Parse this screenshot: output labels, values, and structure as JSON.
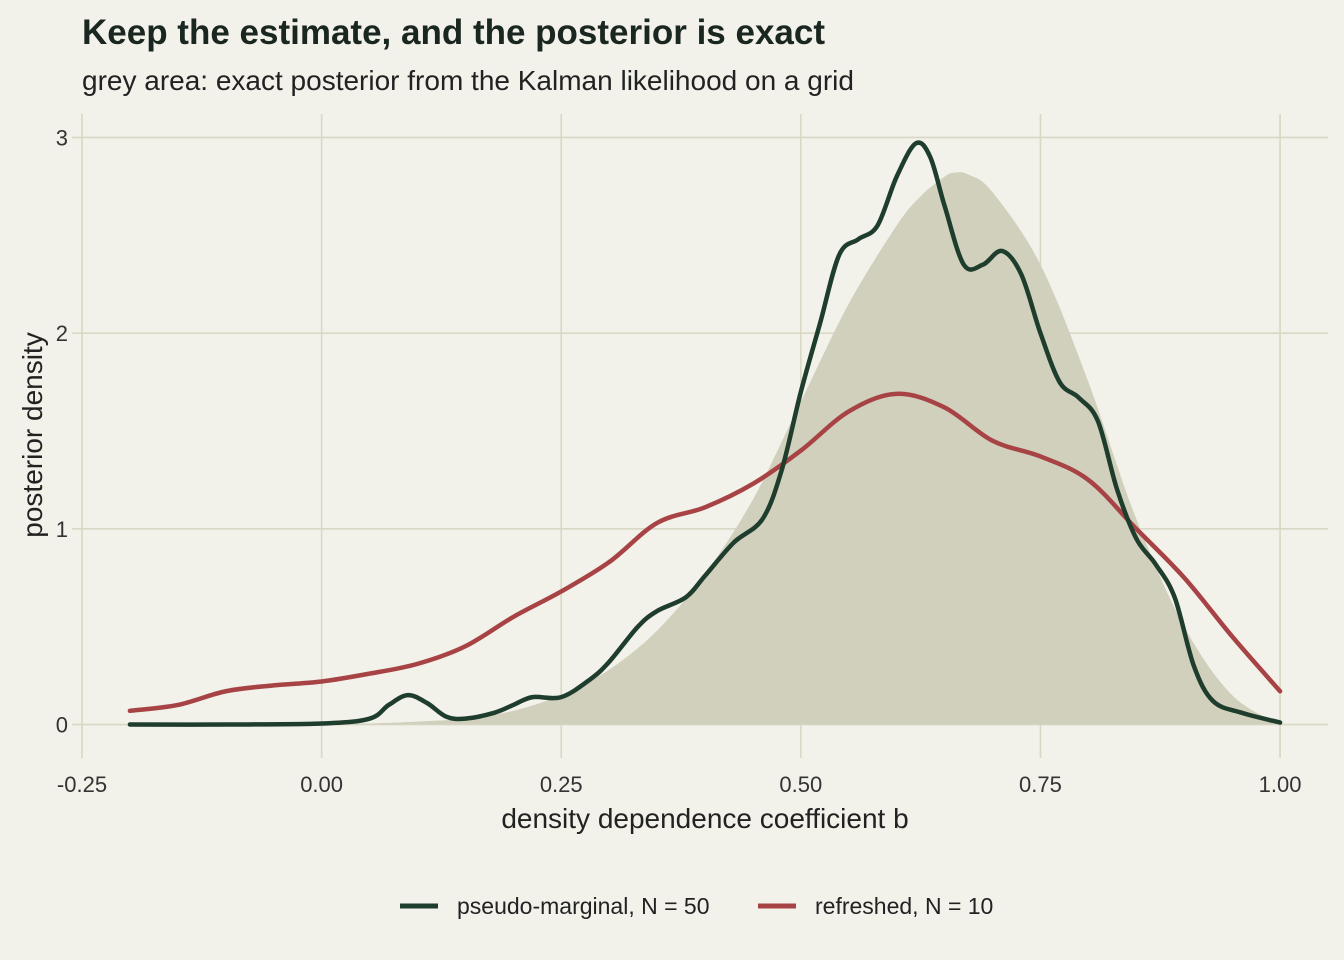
{
  "chart_data": {
    "type": "line",
    "title": "Keep the estimate, and the posterior is exact",
    "subtitle": "grey area: exact posterior from the Kalman likelihood on a grid",
    "xlabel": "density dependence coefficient b",
    "ylabel": "posterior density",
    "xlim": [
      -0.25,
      1.05
    ],
    "ylim": [
      -0.12,
      3.12
    ],
    "x_ticks": [
      -0.25,
      0.0,
      0.25,
      0.5,
      0.75,
      1.0
    ],
    "x_tick_labels": [
      "-0.25",
      "0.00",
      "0.25",
      "0.50",
      "0.75",
      "1.00"
    ],
    "y_ticks": [
      0,
      1,
      2,
      3
    ],
    "y_tick_labels": [
      "0",
      "1",
      "2",
      "3"
    ],
    "grid": true,
    "legend_position": "bottom",
    "area": {
      "color": "#d1d0bd",
      "x": [
        0.0,
        0.05,
        0.1,
        0.15,
        0.2,
        0.25,
        0.3,
        0.35,
        0.4,
        0.45,
        0.5,
        0.55,
        0.6,
        0.625,
        0.65,
        0.66,
        0.675,
        0.7,
        0.75,
        0.8,
        0.85,
        0.9,
        0.95,
        1.0
      ],
      "y": [
        0.0,
        0.005,
        0.015,
        0.03,
        0.07,
        0.15,
        0.28,
        0.48,
        0.77,
        1.15,
        1.65,
        2.15,
        2.55,
        2.7,
        2.8,
        2.82,
        2.81,
        2.72,
        2.35,
        1.75,
        1.05,
        0.5,
        0.15,
        0.0
      ]
    },
    "series": [
      {
        "name": "pseudo-marginal, N = 50",
        "color": "#1f3d2c",
        "x": [
          -0.2,
          -0.1,
          0.0,
          0.05,
          0.07,
          0.09,
          0.11,
          0.13,
          0.15,
          0.18,
          0.2,
          0.22,
          0.25,
          0.28,
          0.3,
          0.33,
          0.35,
          0.38,
          0.4,
          0.43,
          0.46,
          0.48,
          0.5,
          0.52,
          0.54,
          0.56,
          0.58,
          0.6,
          0.62,
          0.635,
          0.65,
          0.67,
          0.69,
          0.71,
          0.73,
          0.75,
          0.77,
          0.79,
          0.81,
          0.83,
          0.85,
          0.87,
          0.89,
          0.91,
          0.93,
          0.96,
          1.0
        ],
        "y": [
          0.0,
          0.0,
          0.005,
          0.03,
          0.1,
          0.15,
          0.11,
          0.04,
          0.03,
          0.06,
          0.1,
          0.14,
          0.14,
          0.23,
          0.32,
          0.5,
          0.58,
          0.65,
          0.76,
          0.93,
          1.05,
          1.3,
          1.7,
          2.05,
          2.4,
          2.48,
          2.55,
          2.8,
          2.97,
          2.9,
          2.65,
          2.35,
          2.35,
          2.42,
          2.3,
          2.0,
          1.75,
          1.67,
          1.55,
          1.2,
          0.95,
          0.82,
          0.65,
          0.3,
          0.12,
          0.06,
          0.01
        ]
      },
      {
        "name": "refreshed, N = 10",
        "color": "#a84345",
        "x": [
          -0.2,
          -0.15,
          -0.1,
          -0.05,
          0.0,
          0.05,
          0.1,
          0.15,
          0.2,
          0.25,
          0.3,
          0.35,
          0.4,
          0.45,
          0.5,
          0.55,
          0.6,
          0.65,
          0.7,
          0.75,
          0.8,
          0.85,
          0.9,
          0.95,
          1.0
        ],
        "y": [
          0.07,
          0.1,
          0.17,
          0.2,
          0.22,
          0.26,
          0.31,
          0.4,
          0.55,
          0.68,
          0.83,
          1.03,
          1.11,
          1.23,
          1.4,
          1.6,
          1.69,
          1.62,
          1.45,
          1.37,
          1.25,
          1.0,
          0.75,
          0.45,
          0.17
        ]
      }
    ]
  }
}
